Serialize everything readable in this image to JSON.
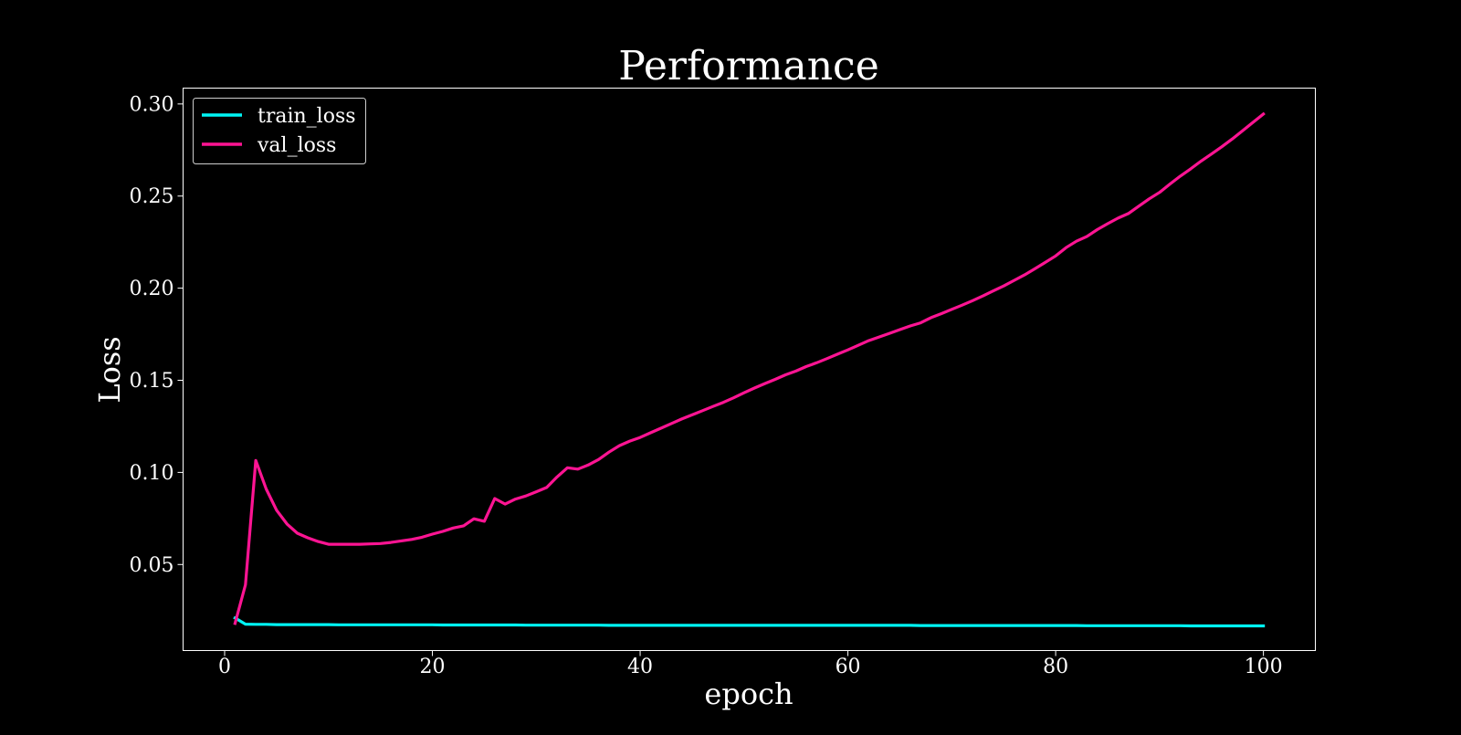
{
  "chart_data": {
    "type": "line",
    "title": "Performance",
    "xlabel": "epoch",
    "ylabel": "Loss",
    "xlim": [
      -4,
      105
    ],
    "ylim": [
      0.0033,
      0.3086
    ],
    "xticks": [
      0,
      20,
      40,
      60,
      80,
      100
    ],
    "xtick_labels": [
      "0",
      "20",
      "40",
      "60",
      "80",
      "100"
    ],
    "yticks": [
      0.05,
      0.1,
      0.15,
      0.2,
      0.25,
      0.3
    ],
    "ytick_labels": [
      "0.05",
      "0.10",
      "0.15",
      "0.20",
      "0.25",
      "0.30"
    ],
    "grid": false,
    "legend_position": "top-left",
    "background": "#000000",
    "foreground": "#ffffff",
    "x": [
      1,
      2,
      3,
      4,
      5,
      6,
      7,
      8,
      9,
      10,
      11,
      12,
      13,
      14,
      15,
      16,
      17,
      18,
      19,
      20,
      21,
      22,
      23,
      24,
      25,
      26,
      27,
      28,
      29,
      30,
      31,
      32,
      33,
      34,
      35,
      36,
      37,
      38,
      39,
      40,
      41,
      42,
      43,
      44,
      45,
      46,
      47,
      48,
      49,
      50,
      51,
      52,
      53,
      54,
      55,
      56,
      57,
      58,
      59,
      60,
      61,
      62,
      63,
      64,
      65,
      66,
      67,
      68,
      69,
      70,
      71,
      72,
      73,
      74,
      75,
      76,
      77,
      78,
      79,
      80,
      81,
      82,
      83,
      84,
      85,
      86,
      87,
      88,
      89,
      90,
      91,
      92,
      93,
      94,
      95,
      96,
      97,
      98,
      99,
      100
    ],
    "series": [
      {
        "name": "train_loss",
        "color": "#00f5f5",
        "values": [
          0.021,
          0.0176,
          0.0175,
          0.0175,
          0.0174,
          0.0174,
          0.0174,
          0.0174,
          0.0174,
          0.0174,
          0.0173,
          0.0173,
          0.0173,
          0.0173,
          0.0173,
          0.0173,
          0.0173,
          0.0173,
          0.0173,
          0.0173,
          0.0172,
          0.0172,
          0.0172,
          0.0172,
          0.0172,
          0.0172,
          0.0172,
          0.0172,
          0.0171,
          0.0171,
          0.0171,
          0.0171,
          0.0171,
          0.0171,
          0.0171,
          0.0171,
          0.017,
          0.017,
          0.017,
          0.017,
          0.017,
          0.017,
          0.017,
          0.017,
          0.017,
          0.017,
          0.017,
          0.017,
          0.017,
          0.017,
          0.017,
          0.017,
          0.017,
          0.017,
          0.017,
          0.017,
          0.017,
          0.017,
          0.017,
          0.017,
          0.017,
          0.017,
          0.017,
          0.017,
          0.017,
          0.017,
          0.0169,
          0.0169,
          0.0169,
          0.0169,
          0.0169,
          0.0169,
          0.0169,
          0.0169,
          0.0169,
          0.0169,
          0.0169,
          0.0169,
          0.0169,
          0.0169,
          0.0169,
          0.0169,
          0.0168,
          0.0168,
          0.0168,
          0.0168,
          0.0168,
          0.0168,
          0.0168,
          0.0168,
          0.0168,
          0.0168,
          0.0167,
          0.0167,
          0.0167,
          0.0167,
          0.0167,
          0.0167,
          0.0167,
          0.0167
        ]
      },
      {
        "name": "val_loss",
        "color": "#ff1493",
        "values": [
          0.018,
          0.039,
          0.1065,
          0.091,
          0.0795,
          0.072,
          0.067,
          0.0645,
          0.0625,
          0.061,
          0.061,
          0.061,
          0.061,
          0.0612,
          0.0614,
          0.062,
          0.0628,
          0.0636,
          0.0648,
          0.0665,
          0.068,
          0.0698,
          0.071,
          0.0748,
          0.0735,
          0.0858,
          0.0828,
          0.0855,
          0.0872,
          0.0895,
          0.0918,
          0.0975,
          0.1025,
          0.1018,
          0.104,
          0.107,
          0.111,
          0.1145,
          0.117,
          0.119,
          0.1215,
          0.124,
          0.1265,
          0.129,
          0.1312,
          0.1335,
          0.1358,
          0.138,
          0.1405,
          0.1432,
          0.1458,
          0.1482,
          0.1505,
          0.153,
          0.155,
          0.1575,
          0.1595,
          0.1618,
          0.1642,
          0.1665,
          0.169,
          0.1715,
          0.1735,
          0.1755,
          0.1775,
          0.1795,
          0.1812,
          0.184,
          0.1862,
          0.1885,
          0.1908,
          0.1932,
          0.1958,
          0.1985,
          0.2012,
          0.2042,
          0.2072,
          0.2105,
          0.214,
          0.2175,
          0.222,
          0.2255,
          0.228,
          0.2318,
          0.235,
          0.238,
          0.2405,
          0.2445,
          0.2485,
          0.252,
          0.2565,
          0.2608,
          0.2648,
          0.269,
          0.2728,
          0.2768,
          0.281,
          0.2855,
          0.29,
          0.2945
        ]
      }
    ]
  }
}
